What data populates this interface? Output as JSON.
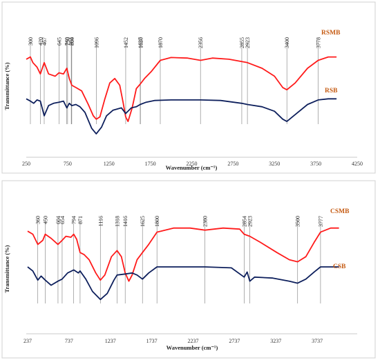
{
  "chart_data": [
    {
      "type": "line",
      "xlabel": "Wavenumber (cm⁻¹)",
      "ylabel": "Transmittance (%)",
      "xlim": [
        250,
        4250
      ],
      "x_ticks": [
        250,
        750,
        1250,
        1750,
        2250,
        2750,
        3250,
        3750,
        4250
      ],
      "grid": false,
      "peak_labels": [
        300,
        420,
        467,
        645,
        740,
        750,
        794,
        800,
        1096,
        1452,
        1627,
        1630,
        1870,
        2356,
        2855,
        2923,
        3400,
        3778
      ],
      "series": [
        {
          "name": "RSMB",
          "color": "#ff1a1a",
          "points": [
            [
              250,
              0.83
            ],
            [
              300,
              0.85
            ],
            [
              330,
              0.8
            ],
            [
              380,
              0.76
            ],
            [
              420,
              0.7
            ],
            [
              467,
              0.8
            ],
            [
              520,
              0.7
            ],
            [
              600,
              0.68
            ],
            [
              645,
              0.71
            ],
            [
              700,
              0.7
            ],
            [
              740,
              0.75
            ],
            [
              770,
              0.66
            ],
            [
              800,
              0.6
            ],
            [
              850,
              0.58
            ],
            [
              920,
              0.55
            ],
            [
              1000,
              0.43
            ],
            [
              1060,
              0.33
            ],
            [
              1096,
              0.3
            ],
            [
              1140,
              0.32
            ],
            [
              1200,
              0.48
            ],
            [
              1260,
              0.62
            ],
            [
              1320,
              0.66
            ],
            [
              1380,
              0.6
            ],
            [
              1420,
              0.45
            ],
            [
              1452,
              0.32
            ],
            [
              1480,
              0.28
            ],
            [
              1530,
              0.4
            ],
            [
              1580,
              0.57
            ],
            [
              1627,
              0.61
            ],
            [
              1680,
              0.66
            ],
            [
              1760,
              0.72
            ],
            [
              1870,
              0.82
            ],
            [
              2000,
              0.845
            ],
            [
              2200,
              0.84
            ],
            [
              2356,
              0.82
            ],
            [
              2500,
              0.84
            ],
            [
              2700,
              0.83
            ],
            [
              2855,
              0.81
            ],
            [
              2923,
              0.8
            ],
            [
              3100,
              0.75
            ],
            [
              3250,
              0.68
            ],
            [
              3350,
              0.58
            ],
            [
              3400,
              0.56
            ],
            [
              3500,
              0.62
            ],
            [
              3650,
              0.75
            ],
            [
              3778,
              0.82
            ],
            [
              3900,
              0.85
            ],
            [
              4000,
              0.85
            ]
          ]
        },
        {
          "name": "RSB",
          "color": "#0d1f5c",
          "points": [
            [
              250,
              0.48
            ],
            [
              300,
              0.46
            ],
            [
              340,
              0.44
            ],
            [
              380,
              0.47
            ],
            [
              420,
              0.46
            ],
            [
              467,
              0.33
            ],
            [
              520,
              0.42
            ],
            [
              580,
              0.44
            ],
            [
              645,
              0.45
            ],
            [
              700,
              0.46
            ],
            [
              740,
              0.4
            ],
            [
              770,
              0.44
            ],
            [
              800,
              0.42
            ],
            [
              850,
              0.43
            ],
            [
              900,
              0.41
            ],
            [
              960,
              0.36
            ],
            [
              1040,
              0.22
            ],
            [
              1096,
              0.17
            ],
            [
              1160,
              0.23
            ],
            [
              1220,
              0.33
            ],
            [
              1300,
              0.38
            ],
            [
              1400,
              0.4
            ],
            [
              1452,
              0.35
            ],
            [
              1520,
              0.4
            ],
            [
              1580,
              0.41
            ],
            [
              1627,
              0.43
            ],
            [
              1700,
              0.45
            ],
            [
              1800,
              0.465
            ],
            [
              2000,
              0.47
            ],
            [
              2356,
              0.47
            ],
            [
              2600,
              0.465
            ],
            [
              2855,
              0.44
            ],
            [
              2923,
              0.43
            ],
            [
              3100,
              0.41
            ],
            [
              3250,
              0.37
            ],
            [
              3350,
              0.3
            ],
            [
              3400,
              0.28
            ],
            [
              3500,
              0.34
            ],
            [
              3650,
              0.43
            ],
            [
              3778,
              0.47
            ],
            [
              3900,
              0.48
            ],
            [
              4000,
              0.48
            ]
          ]
        }
      ]
    },
    {
      "type": "line",
      "xlabel": "Wavenumber (cm⁻¹)",
      "ylabel": "Transmittance (%)",
      "xlim": [
        237,
        4237
      ],
      "x_ticks": [
        237,
        737,
        1237,
        1737,
        2237,
        2737,
        3237,
        3737
      ],
      "grid": false,
      "peak_labels": [
        360,
        450,
        604,
        654,
        794,
        871,
        1116,
        1318,
        1416,
        1625,
        1800,
        2380,
        2854,
        2923,
        3500,
        3777
      ],
      "series": [
        {
          "name": "CSMB",
          "color": "#ff1a1a",
          "points": [
            [
              237,
              0.83
            ],
            [
              300,
              0.8
            ],
            [
              360,
              0.7
            ],
            [
              420,
              0.74
            ],
            [
              450,
              0.8
            ],
            [
              520,
              0.76
            ],
            [
              604,
              0.7
            ],
            [
              654,
              0.74
            ],
            [
              700,
              0.78
            ],
            [
              760,
              0.77
            ],
            [
              794,
              0.8
            ],
            [
              830,
              0.75
            ],
            [
              871,
              0.62
            ],
            [
              920,
              0.6
            ],
            [
              980,
              0.55
            ],
            [
              1060,
              0.42
            ],
            [
              1116,
              0.35
            ],
            [
              1170,
              0.4
            ],
            [
              1250,
              0.58
            ],
            [
              1318,
              0.64
            ],
            [
              1370,
              0.58
            ],
            [
              1416,
              0.42
            ],
            [
              1460,
              0.34
            ],
            [
              1500,
              0.4
            ],
            [
              1560,
              0.55
            ],
            [
              1625,
              0.62
            ],
            [
              1700,
              0.7
            ],
            [
              1800,
              0.82
            ],
            [
              2000,
              0.86
            ],
            [
              2200,
              0.86
            ],
            [
              2380,
              0.84
            ],
            [
              2600,
              0.86
            ],
            [
              2800,
              0.85
            ],
            [
              2854,
              0.8
            ],
            [
              2923,
              0.78
            ],
            [
              3050,
              0.72
            ],
            [
              3250,
              0.62
            ],
            [
              3400,
              0.55
            ],
            [
              3500,
              0.53
            ],
            [
              3600,
              0.58
            ],
            [
              3700,
              0.72
            ],
            [
              3777,
              0.82
            ],
            [
              3900,
              0.86
            ],
            [
              4000,
              0.86
            ]
          ]
        },
        {
          "name": "CSB",
          "color": "#0d1f5c",
          "points": [
            [
              237,
              0.48
            ],
            [
              300,
              0.44
            ],
            [
              360,
              0.35
            ],
            [
              400,
              0.39
            ],
            [
              450,
              0.35
            ],
            [
              520,
              0.3
            ],
            [
              604,
              0.34
            ],
            [
              654,
              0.36
            ],
            [
              720,
              0.42
            ],
            [
              794,
              0.45
            ],
            [
              850,
              0.42
            ],
            [
              871,
              0.44
            ],
            [
              940,
              0.36
            ],
            [
              1020,
              0.24
            ],
            [
              1116,
              0.16
            ],
            [
              1200,
              0.22
            ],
            [
              1280,
              0.35
            ],
            [
              1318,
              0.4
            ],
            [
              1416,
              0.41
            ],
            [
              1500,
              0.42
            ],
            [
              1560,
              0.4
            ],
            [
              1625,
              0.36
            ],
            [
              1700,
              0.42
            ],
            [
              1800,
              0.48
            ],
            [
              2000,
              0.48
            ],
            [
              2380,
              0.48
            ],
            [
              2700,
              0.47
            ],
            [
              2854,
              0.38
            ],
            [
              2890,
              0.43
            ],
            [
              2923,
              0.34
            ],
            [
              2980,
              0.38
            ],
            [
              3200,
              0.37
            ],
            [
              3400,
              0.34
            ],
            [
              3500,
              0.32
            ],
            [
              3600,
              0.36
            ],
            [
              3700,
              0.43
            ],
            [
              3777,
              0.48
            ],
            [
              3900,
              0.48
            ],
            [
              4000,
              0.48
            ]
          ]
        }
      ]
    }
  ]
}
